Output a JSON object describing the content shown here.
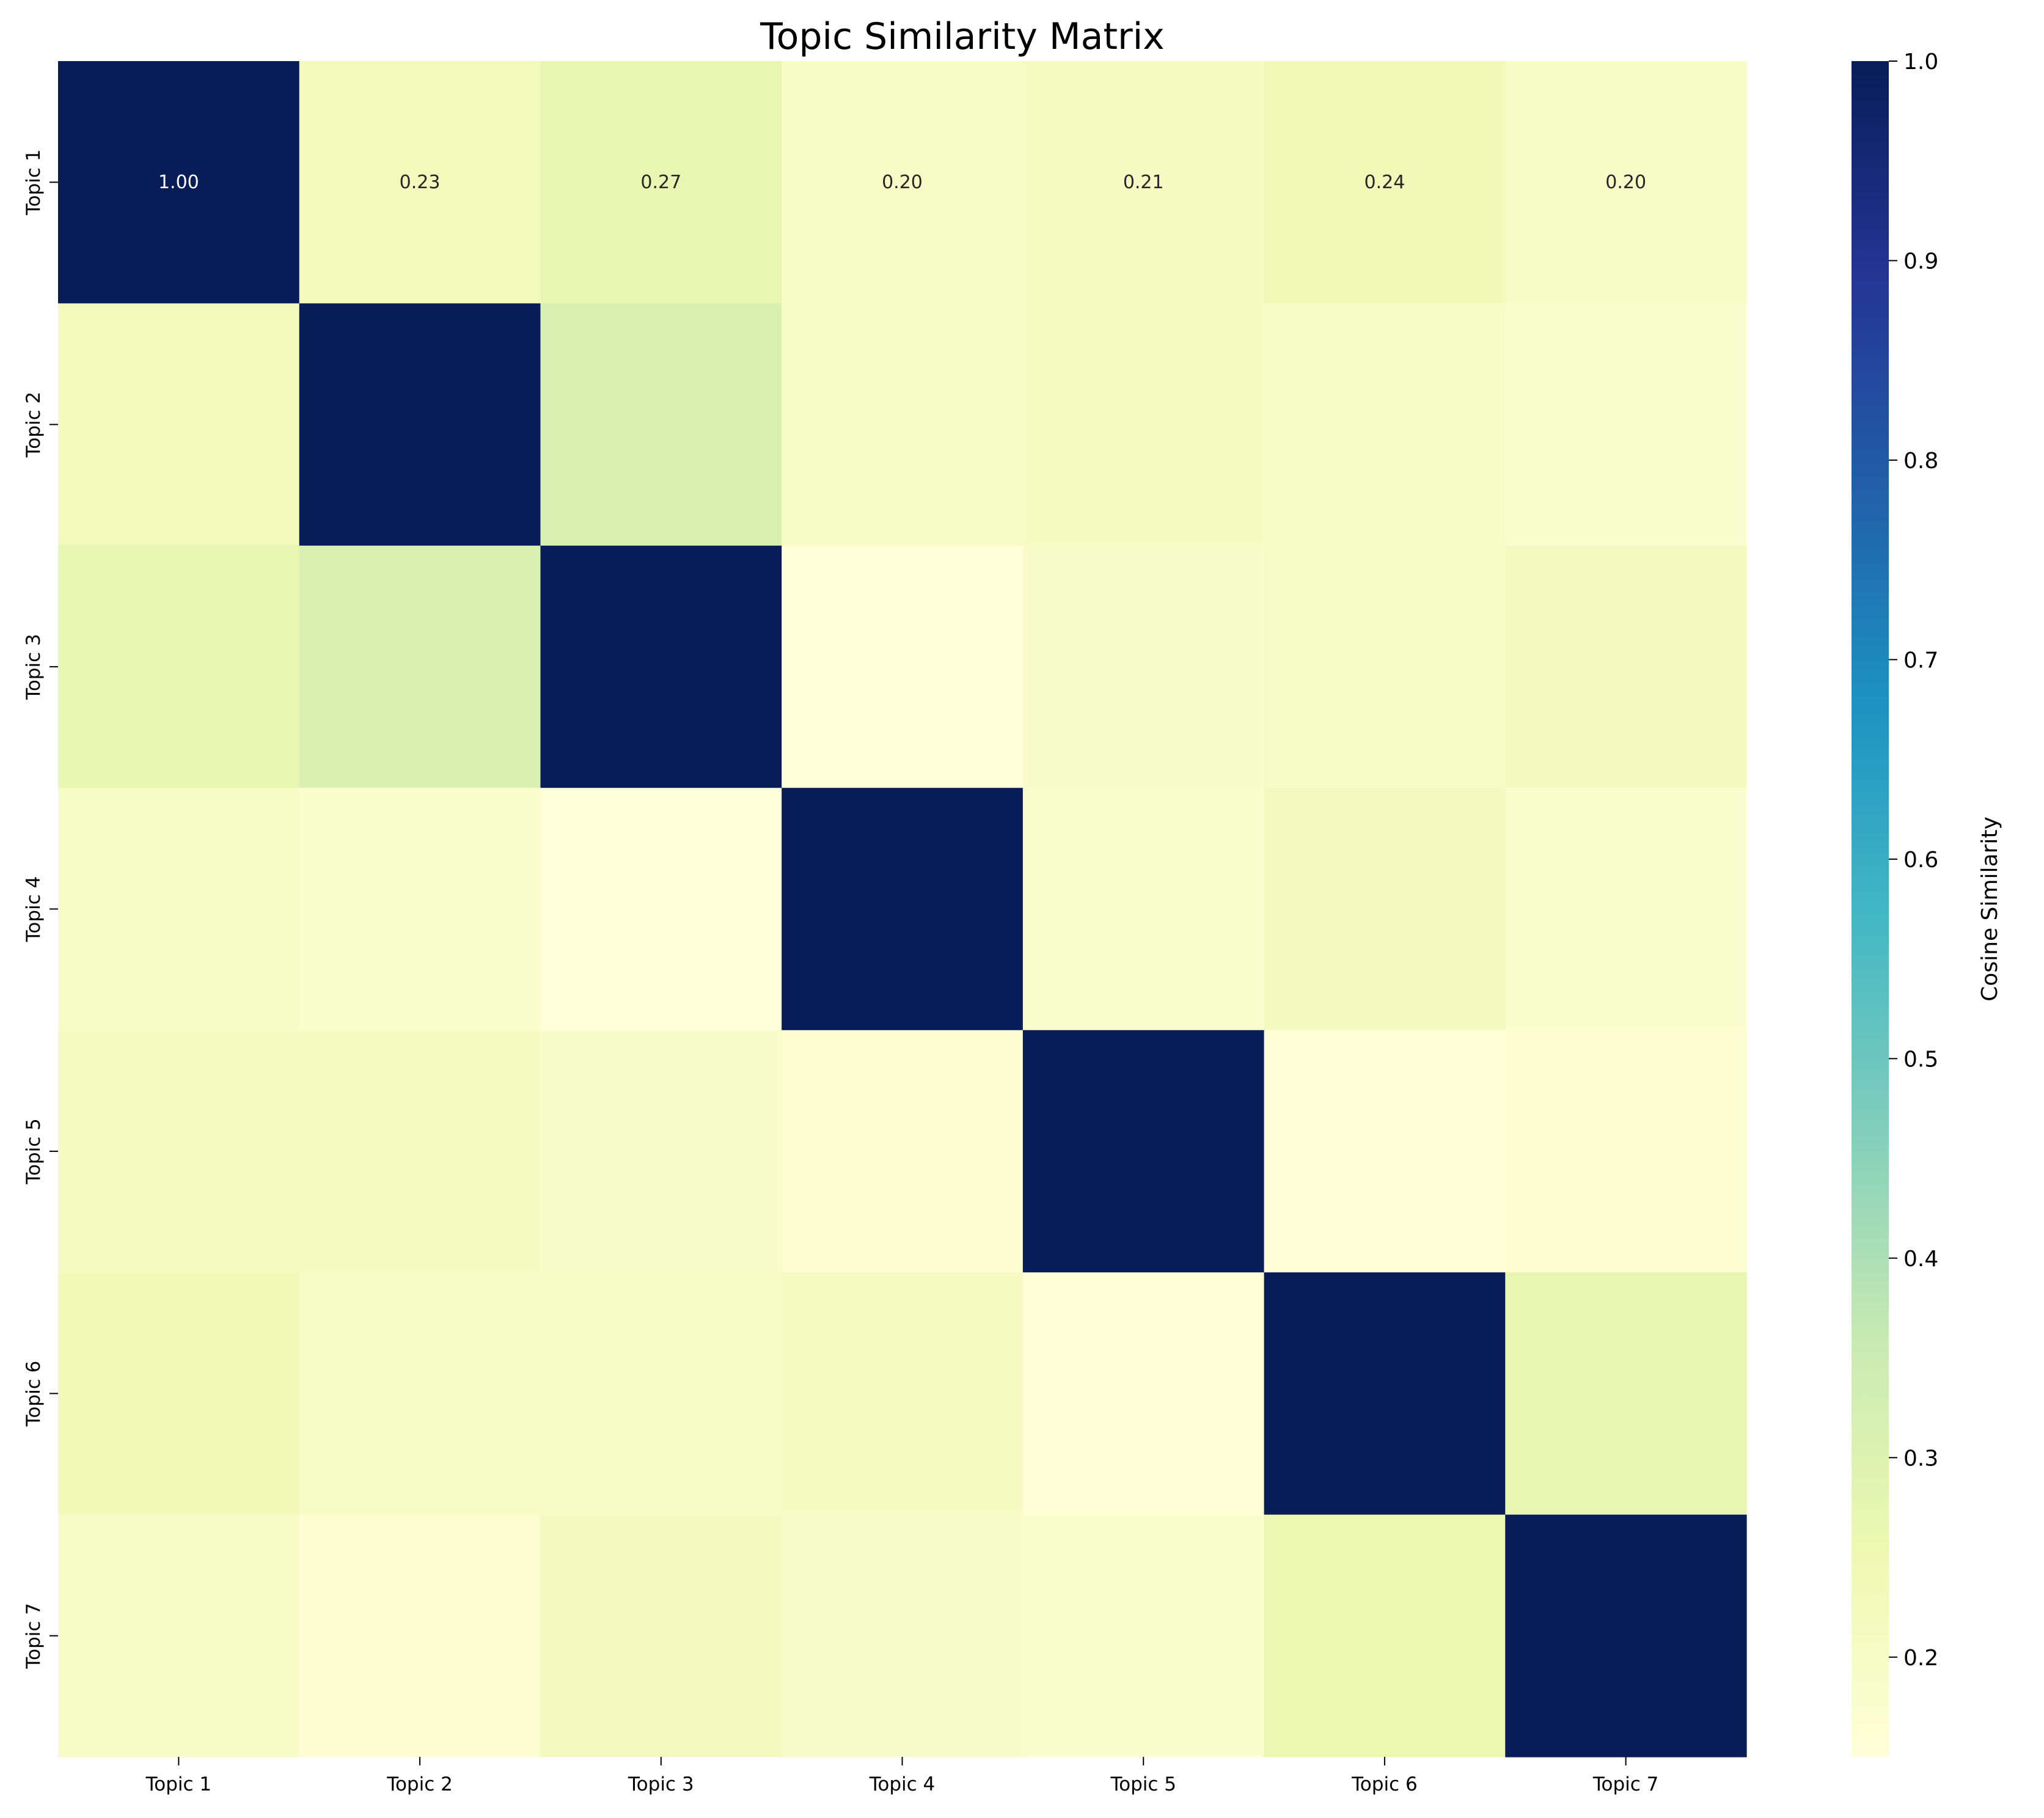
{
  "chart_data": {
    "type": "heatmap",
    "title": "Topic Similarity Matrix",
    "row_labels": [
      "Topic 1",
      "Topic 2",
      "Topic 3",
      "Topic 4",
      "Topic 5",
      "Topic 6",
      "Topic 7"
    ],
    "col_labels": [
      "Topic 1",
      "Topic 2",
      "Topic 3",
      "Topic 4",
      "Topic 5",
      "Topic 6",
      "Topic 7"
    ],
    "values": [
      [
        1.0,
        0.23,
        0.27,
        0.2,
        0.21,
        0.24,
        0.2
      ],
      [
        0.23,
        1.0,
        0.31,
        0.2,
        0.21,
        0.2,
        0.18
      ],
      [
        0.27,
        0.31,
        1.0,
        0.15,
        0.19,
        0.2,
        0.22
      ],
      [
        0.2,
        0.18,
        0.15,
        1.0,
        0.18,
        0.22,
        0.18
      ],
      [
        0.21,
        0.21,
        0.19,
        0.17,
        1.0,
        0.16,
        0.17
      ],
      [
        0.24,
        0.2,
        0.2,
        0.21,
        0.16,
        1.0,
        0.27
      ],
      [
        0.2,
        0.17,
        0.22,
        0.19,
        0.18,
        0.26,
        1.0
      ]
    ],
    "annotated_row": 0,
    "annotation_format": "2 decimals",
    "colormap": "YlGnBu",
    "color_range": [
      0.15,
      1.0
    ],
    "colorbar": {
      "label": "Cosine Similarity",
      "ticks": [
        "0.2",
        "0.3",
        "0.4",
        "0.5",
        "0.6",
        "0.7",
        "0.8",
        "0.9",
        "1.0"
      ],
      "tick_values": [
        0.2,
        0.3,
        0.4,
        0.5,
        0.6,
        0.7,
        0.8,
        0.9,
        1.0
      ]
    },
    "grid": false
  }
}
